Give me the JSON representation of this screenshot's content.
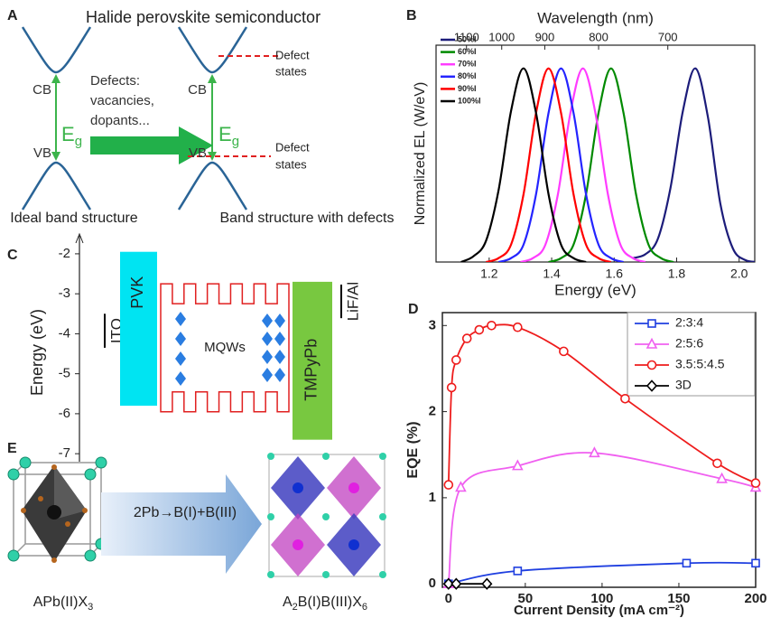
{
  "panel_labels": [
    "A",
    "B",
    "C",
    "D",
    "E"
  ],
  "diagram_a": {
    "title": "Halide perovskite semiconductor",
    "left": {
      "cb": "CB",
      "vb": "VB",
      "gap": "E",
      "gap_sub": "g",
      "caption": "Ideal band structure"
    },
    "arrow_text": [
      "Defects:",
      "vacancies,",
      "dopants..."
    ],
    "right": {
      "cb": "CB",
      "vb": "VB",
      "gap": "E",
      "gap_sub": "g",
      "defect_top": [
        "Defect",
        "states"
      ],
      "defect_bottom": [
        "Defect",
        "states"
      ],
      "caption": "Band structure with defects"
    }
  },
  "diagram_e": {
    "transform": "2Pb→B(I)+B(III)",
    "left_formula": [
      "APb(II)X",
      "3"
    ],
    "right_formula": [
      "A",
      "2",
      "B(I)B(III)X",
      "6"
    ]
  },
  "chart_data": [
    {
      "type": "spectra",
      "x2label": "Wavelength (nm)",
      "xlabel": "Energy (eV)",
      "ylabel": "Normalized EL (W/eV)",
      "xlim": [
        1.03,
        2.05
      ],
      "xticks": [
        1.2,
        1.4,
        1.6,
        1.8,
        {
          "value": 2,
          "label": "2.0"
        }
      ],
      "x2lim": [
        1204,
        605
      ],
      "x2scale": "reciprocal",
      "x2ticks": [
        1100,
        1000,
        900,
        800,
        700
      ],
      "ylim": [
        0,
        1.12
      ],
      "legend": "upper left",
      "series": [
        {
          "name": "50%I",
          "color": "#1c1c7a",
          "x": [
            1.66,
            1.7,
            1.74,
            1.78,
            1.82,
            1.86,
            1.9,
            1.94,
            1.98,
            2.02,
            2.06
          ],
          "values": [
            0.02,
            0.04,
            0.12,
            0.38,
            0.78,
            1,
            0.75,
            0.3,
            0.07,
            0.01,
            0
          ]
        },
        {
          "name": "60%I",
          "color": "#008a00",
          "x": [
            1.39,
            1.43,
            1.47,
            1.51,
            1.55,
            1.59,
            1.63,
            1.67,
            1.71,
            1.75,
            1.79
          ],
          "values": [
            0,
            0.02,
            0.09,
            0.35,
            0.77,
            1,
            0.77,
            0.35,
            0.09,
            0.02,
            0
          ]
        },
        {
          "name": "70%I",
          "color": "#ff3cff",
          "x": [
            1.3,
            1.34,
            1.38,
            1.42,
            1.46,
            1.5,
            1.54,
            1.58,
            1.62,
            1.66,
            1.7
          ],
          "values": [
            0,
            0.02,
            0.09,
            0.35,
            0.77,
            1,
            0.77,
            0.35,
            0.09,
            0.02,
            0
          ]
        },
        {
          "name": "80%I",
          "color": "#2424ff",
          "x": [
            1.23,
            1.27,
            1.31,
            1.35,
            1.39,
            1.43,
            1.47,
            1.51,
            1.55,
            1.59,
            1.63
          ],
          "values": [
            0,
            0.02,
            0.09,
            0.35,
            0.77,
            1,
            0.77,
            0.35,
            0.09,
            0.02,
            0
          ]
        },
        {
          "name": "90%I",
          "color": "#ff0000",
          "x": [
            1.19,
            1.23,
            1.27,
            1.31,
            1.35,
            1.39,
            1.43,
            1.47,
            1.51,
            1.55,
            1.59
          ],
          "values": [
            0,
            0.02,
            0.09,
            0.35,
            0.77,
            1,
            0.77,
            0.35,
            0.09,
            0.02,
            0
          ]
        },
        {
          "name": "100%I",
          "color": "#000000",
          "x": [
            1.11,
            1.15,
            1.19,
            1.23,
            1.27,
            1.31,
            1.35,
            1.39,
            1.43,
            1.47,
            1.51
          ],
          "values": [
            0,
            0.03,
            0.11,
            0.37,
            0.78,
            1,
            0.77,
            0.35,
            0.09,
            0.02,
            0
          ]
        }
      ]
    },
    {
      "type": "energy_levels",
      "ylabel": "Energy (eV)",
      "ylim": [
        -7.2,
        -1.55
      ],
      "yticks": [
        -2,
        -3,
        -4,
        -5,
        -6,
        -7
      ],
      "layers": [
        {
          "name": "ITO",
          "top": -3.5,
          "bottom": -4.35,
          "style": "line",
          "color": "#000000"
        },
        {
          "name": "PVK",
          "top": -1.95,
          "bottom": -5.8,
          "style": "box",
          "color": "#00e4f2"
        },
        {
          "name": "MQWs",
          "top": -2.75,
          "bottom": -5.95,
          "style": "wells",
          "color": "#e02020"
        },
        {
          "name": "TMPyPb",
          "top": -2.7,
          "bottom": -6.65,
          "style": "box",
          "color": "#78c840"
        },
        {
          "name": "LiF/Al",
          "top": -2.77,
          "bottom": -3.61,
          "style": "line",
          "color": "#000000"
        }
      ]
    },
    {
      "type": "line",
      "xlabel": "Current Density (mA cm⁻²)",
      "ylabel": "EQE (%)",
      "xlim": [
        -4,
        200
      ],
      "ylim": [
        -0.04,
        3.15
      ],
      "xticks": [
        0,
        50,
        100,
        150,
        200
      ],
      "yticks": [
        0,
        1,
        2,
        3
      ],
      "legend": "upper right",
      "series": [
        {
          "name": "2:3:4",
          "color": "#1f3fe0",
          "marker": "square",
          "x": [
            0,
            45,
            155,
            200
          ],
          "values": [
            0,
            0.15,
            0.24,
            0.24
          ]
        },
        {
          "name": "2:5:6",
          "color": "#f060f0",
          "marker": "triangle",
          "x": [
            0,
            8,
            45,
            95,
            178,
            200
          ],
          "values": [
            0,
            1.12,
            1.37,
            1.52,
            1.22,
            1.12
          ]
        },
        {
          "name": "3.5:5:4.5",
          "color": "#ee1c1c",
          "marker": "circle",
          "x": [
            0,
            2,
            5,
            12,
            20,
            28,
            45,
            75,
            115,
            175,
            200
          ],
          "values": [
            1.15,
            2.28,
            2.6,
            2.85,
            2.95,
            3.0,
            2.98,
            2.7,
            2.15,
            1.4,
            1.17
          ]
        },
        {
          "name": "3D",
          "color": "#000000",
          "marker": "diamond",
          "x": [
            0,
            5,
            25
          ],
          "values": [
            0,
            0,
            0
          ]
        }
      ]
    }
  ]
}
